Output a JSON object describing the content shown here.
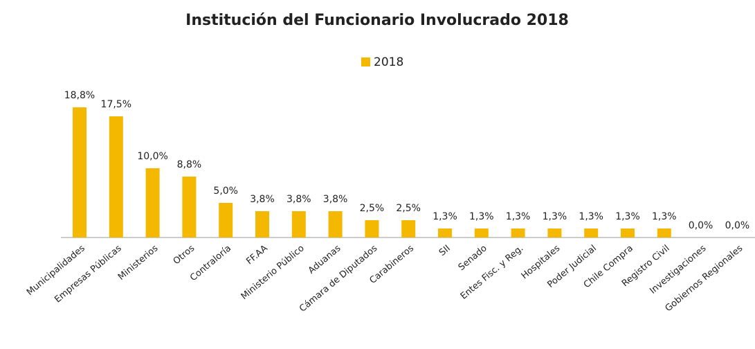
{
  "chart_data": {
    "type": "bar",
    "title": "Institución del Funcionario Involucrado 2018",
    "categories": [
      "Municipalidades",
      "Empresas Públicas",
      "Ministerios",
      "Otros",
      "Contraloría",
      "FF.AA",
      "Ministerio Público",
      "Aduanas",
      "Cámara de Diputados",
      "Carabineros",
      "SII",
      "Senado",
      "Entes Fisc. y Reg.",
      "Hospitales",
      "Poder Judicial",
      "Chile Compra",
      "Registro Civil",
      "Investigaciones",
      "Gobiernos Regionales"
    ],
    "series": [
      {
        "name": "2018",
        "color": "#f4b800",
        "values": [
          18.8,
          17.5,
          10.0,
          8.8,
          5.0,
          3.8,
          3.8,
          3.8,
          2.5,
          2.5,
          1.3,
          1.3,
          1.3,
          1.3,
          1.3,
          1.3,
          1.3,
          0.0,
          0.0
        ],
        "value_labels": [
          "18,8%",
          "17,5%",
          "10,0%",
          "8,8%",
          "5,0%",
          "3,8%",
          "3,8%",
          "3,8%",
          "2,5%",
          "2,5%",
          "1,3%",
          "1,3%",
          "1,3%",
          "1,3%",
          "1,3%",
          "1,3%",
          "1,3%",
          "0,0%",
          "0,0%"
        ]
      }
    ],
    "legend": "top"
  }
}
